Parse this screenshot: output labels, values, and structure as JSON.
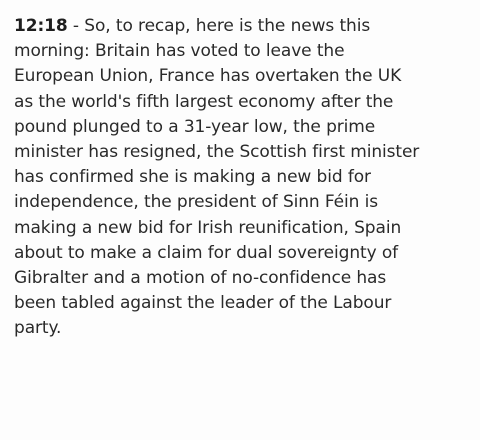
{
  "post": {
    "timestamp": "12:18",
    "separator": " - ",
    "lines": [
      "So, to recap, here is the news this",
      "morning: Britain has voted to leave the",
      "European Union, France has overtaken the UK",
      "as the world's fifth largest economy after the",
      "pound plunged to a 31-year low, the prime",
      "minister has resigned, the Scottish first minister",
      "has confirmed she is making a new bid for",
      "independence, the president of Sinn Féin is",
      "making a new bid for Irish reunification, Spain",
      "about to make a claim for dual sovereignty of",
      "Gibralter and a motion of no-confidence has",
      "been tabled against the leader of the Labour",
      "party."
    ]
  }
}
